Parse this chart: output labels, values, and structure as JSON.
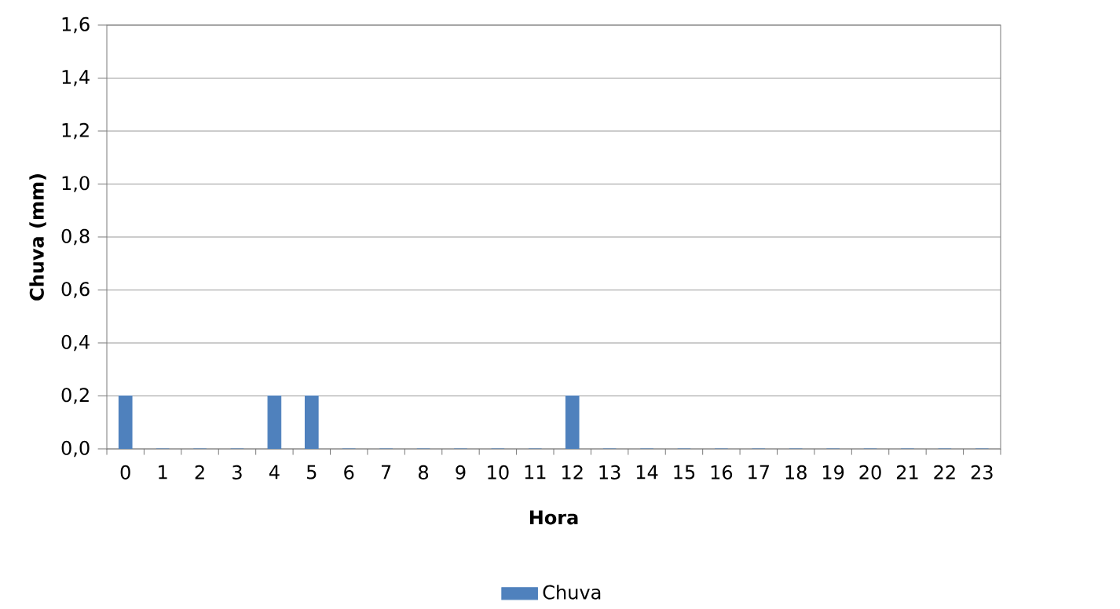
{
  "chart_data": {
    "type": "bar",
    "categories": [
      "0",
      "1",
      "2",
      "3",
      "4",
      "5",
      "6",
      "7",
      "8",
      "9",
      "10",
      "11",
      "12",
      "13",
      "14",
      "15",
      "16",
      "17",
      "18",
      "19",
      "20",
      "21",
      "22",
      "23"
    ],
    "series": [
      {
        "name": "Chuva",
        "color": "#4f81bd",
        "values": [
          0.2,
          0,
          0,
          0,
          0.2,
          0.2,
          0,
          0,
          0,
          0,
          0,
          0,
          0.2,
          0,
          0,
          0,
          0,
          0,
          0,
          0,
          0,
          0,
          0,
          0
        ]
      }
    ],
    "xlabel": "Hora",
    "ylabel": "Chuva (mm)",
    "ylim": [
      0,
      1.6
    ],
    "yticks": [
      {
        "value": 0,
        "label": "0,0"
      },
      {
        "value": 0.2,
        "label": "0,2"
      },
      {
        "value": 0.4,
        "label": "0,4"
      },
      {
        "value": 0.6,
        "label": "0,6"
      },
      {
        "value": 0.8,
        "label": "0,8"
      },
      {
        "value": 1.0,
        "label": "1,0"
      },
      {
        "value": 1.2,
        "label": "1,2"
      },
      {
        "value": 1.4,
        "label": "1,4"
      },
      {
        "value": 1.6,
        "label": "1,6"
      }
    ],
    "grid": "y",
    "legend": "bottom"
  }
}
